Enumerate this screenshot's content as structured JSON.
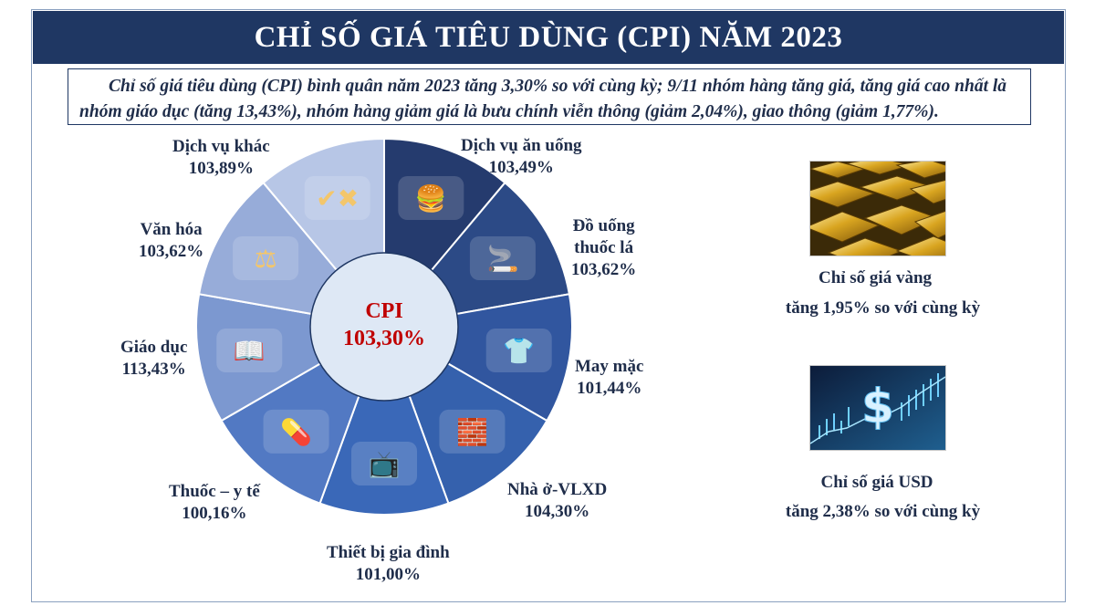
{
  "title": "CHỈ SỐ GIÁ TIÊU DÙNG (CPI) NĂM 2023",
  "summary": "Chỉ số giá tiêu dùng (CPI) bình quân năm 2023 tăng 3,30% so với cùng kỳ; 9/11 nhóm hàng tăng giá, tăng giá cao nhất là nhóm giáo dục (tăng 13,43%), nhóm hàng giảm giá là bưu chính viễn thông (giảm 2,04%), giao thông (giảm 1,77%).",
  "center": {
    "label": "CPI",
    "value": "103,30%"
  },
  "colors": {
    "title_bg": "#1f3763",
    "text": "#1f2d4a",
    "center_text": "#c00000",
    "center_fill": "#dee8f5"
  },
  "chart_data": {
    "type": "pie",
    "title": "CHỈ SỐ GIÁ TIÊU DÙNG (CPI) NĂM 2023",
    "center_label": "CPI 103,30%",
    "segments": [
      {
        "name": "Dịch vụ ăn uống",
        "value_label": "103,49%",
        "value": 103.49,
        "color": "#253b6e",
        "icon": "food-pot-burger-icon"
      },
      {
        "name": "Đồ uống thuốc lá",
        "value_label": "103,62%",
        "value": 103.62,
        "color": "#2c4a86",
        "icon": "drinks-cigarettes-icon"
      },
      {
        "name": "May mặc",
        "value_label": "101,44%",
        "value": 101.44,
        "color": "#31569f",
        "icon": "clothing-icon"
      },
      {
        "name": "Nhà ở-VLXD",
        "value_label": "104,30%",
        "value": 104.3,
        "color": "#3561ad",
        "icon": "construction-materials-icon"
      },
      {
        "name": "Thiết bị gia đình",
        "value_label": "101,00%",
        "value": 101.0,
        "color": "#3a68b8",
        "icon": "home-appliances-icon"
      },
      {
        "name": "Thuốc – y tế",
        "value_label": "100,16%",
        "value": 100.16,
        "color": "#5279c3",
        "icon": "medicine-icon"
      },
      {
        "name": "Giáo dục",
        "value_label": "113,43%",
        "value": 113.43,
        "color": "#7c98d0",
        "icon": "abc-book-icon"
      },
      {
        "name": "Văn hóa",
        "value_label": "103,62%",
        "value": 103.62,
        "color": "#97acd9",
        "icon": "culture-scale-icon"
      },
      {
        "name": "Dịch vụ khác",
        "value_label": "103,89%",
        "value": 103.89,
        "color": "#b7c6e6",
        "icon": "check-cross-hands-icon"
      }
    ]
  },
  "labels": [
    {
      "line1": "Dịch vụ ăn uống",
      "line2": "103,49%"
    },
    {
      "line1": "Đồ uống",
      "line2": "thuốc lá",
      "line3": "103,62%"
    },
    {
      "line1": "May mặc",
      "line2": "101,44%"
    },
    {
      "line1": "Nhà ở-VLXD",
      "line2": "104,30%"
    },
    {
      "line1": "Thiết bị gia đình",
      "line2": "101,00%"
    },
    {
      "line1": "Thuốc – y tế",
      "line2": "100,16%"
    },
    {
      "line1": "Giáo dục",
      "line2": "113,43%"
    },
    {
      "line1": "Văn hóa",
      "line2": "103,62%"
    },
    {
      "line1": "Dịch vụ khác",
      "line2": "103,89%"
    }
  ],
  "side": {
    "gold": {
      "line1": "Chỉ số giá vàng",
      "line2": "tăng 1,95% so với cùng kỳ",
      "image": "gold-bars-image"
    },
    "usd": {
      "line1": "Chỉ số giá USD",
      "line2": "tăng 2,38% so với cùng kỳ",
      "image": "dollar-chart-image"
    }
  }
}
